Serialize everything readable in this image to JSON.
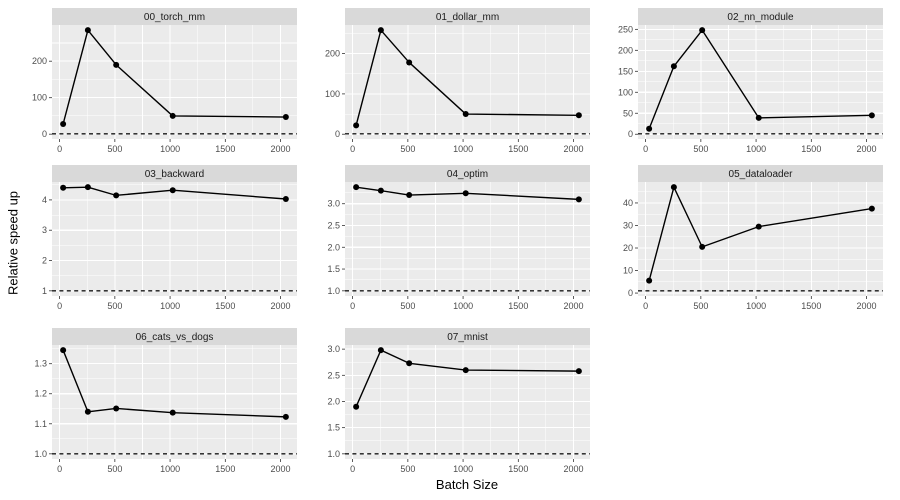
{
  "chart_data": {
    "type": "line",
    "title": "",
    "xlabel": "Batch Size",
    "ylabel": "Relative speed up",
    "legend": "none",
    "grid": "on",
    "baseline_y": 1,
    "x": [
      32,
      256,
      512,
      1024,
      2048
    ],
    "xlim": [
      -68.8,
      2148.8
    ],
    "x_ticks": {
      "values": [
        0,
        500,
        1000,
        1500,
        2000
      ],
      "labels": [
        "0",
        "500",
        "1000",
        "1500",
        "2000"
      ],
      "minor": [
        250,
        750,
        1250,
        1750
      ]
    },
    "facets": [
      {
        "title": "00_torch_mm",
        "values": [
          28,
          285,
          190,
          50,
          47
        ],
        "ylim": [
          -13.2,
          299.2
        ],
        "y_ticks": {
          "values": [
            0,
            100,
            200
          ],
          "labels": [
            "0",
            "100",
            "200"
          ],
          "minor": [
            50,
            150,
            250
          ]
        }
      },
      {
        "title": "01_dollar_mm",
        "values": [
          22,
          258,
          178,
          50,
          47
        ],
        "ylim": [
          -11.85,
          270.85
        ],
        "y_ticks": {
          "values": [
            0,
            100,
            200
          ],
          "labels": [
            "0",
            "100",
            "200"
          ],
          "minor": [
            50,
            150,
            250
          ]
        }
      },
      {
        "title": "02_nn_module",
        "values": [
          13,
          162,
          248,
          39,
          45
        ],
        "ylim": [
          -11.35,
          260.35
        ],
        "y_ticks": {
          "values": [
            0,
            50,
            100,
            150,
            200,
            250
          ],
          "labels": [
            "0",
            "50",
            "100",
            "150",
            "200",
            "250"
          ],
          "minor": [
            25,
            75,
            125,
            175,
            225
          ]
        }
      },
      {
        "title": "03_backward",
        "values": [
          4.4,
          4.42,
          4.15,
          4.32,
          4.03
        ],
        "ylim": [
          0.829,
          4.591
        ],
        "y_ticks": {
          "values": [
            1,
            2,
            3,
            4
          ],
          "labels": [
            "1",
            "2",
            "3",
            "4"
          ],
          "minor": [
            1.5,
            2.5,
            3.5,
            4.5
          ]
        }
      },
      {
        "title": "04_optim",
        "values": [
          3.38,
          3.3,
          3.2,
          3.24,
          3.1
        ],
        "ylim": [
          0.881,
          3.499
        ],
        "y_ticks": {
          "values": [
            1,
            1.5,
            2,
            2.5,
            3,
            3.5
          ],
          "labels": [
            "1.0",
            "1.5",
            "2.0",
            "2.5",
            "3.0",
            "3.5"
          ],
          "minor": [
            1.25,
            1.75,
            2.25,
            2.75,
            3.25
          ]
        }
      },
      {
        "title": "05_dataloader",
        "values": [
          5.5,
          47,
          20.5,
          29.5,
          37.5
        ],
        "ylim": [
          -1.3,
          49.3
        ],
        "y_ticks": {
          "values": [
            0,
            10,
            20,
            30,
            40
          ],
          "labels": [
            "0",
            "10",
            "20",
            "30",
            "40"
          ],
          "minor": [
            5,
            15,
            25,
            35,
            45
          ]
        }
      },
      {
        "title": "06_cats_vs_dogs",
        "values": [
          1.345,
          1.14,
          1.151,
          1.137,
          1.123
        ],
        "ylim": [
          0.98275,
          1.36225
        ],
        "y_ticks": {
          "values": [
            1.0,
            1.1,
            1.2,
            1.3
          ],
          "labels": [
            "1.0",
            "1.1",
            "1.2",
            "1.3"
          ],
          "minor": [
            1.05,
            1.15,
            1.25,
            1.35
          ]
        }
      },
      {
        "title": "07_mnist",
        "values": [
          1.9,
          2.98,
          2.73,
          2.6,
          2.58
        ],
        "ylim": [
          0.901,
          3.079
        ],
        "y_ticks": {
          "values": [
            1,
            1.5,
            2,
            2.5,
            3
          ],
          "labels": [
            "1.0",
            "1.5",
            "2.0",
            "2.5",
            "3.0"
          ],
          "minor": [
            1.25,
            1.75,
            2.25,
            2.75
          ]
        }
      }
    ],
    "style": {
      "background": "#FFFFFF",
      "panel_bg": "#EBEBEB",
      "strip_bg": "#D9D9D9",
      "grid_color": "#FFFFFF",
      "line_color": "#000000",
      "point_color": "#000000",
      "baseline_color": "#1A1A1A",
      "tick_color": "#333333",
      "tick_label_color": "#4D4D4D",
      "strip_text_color": "#1A1A1A",
      "axis_title_color": "#000000"
    }
  }
}
